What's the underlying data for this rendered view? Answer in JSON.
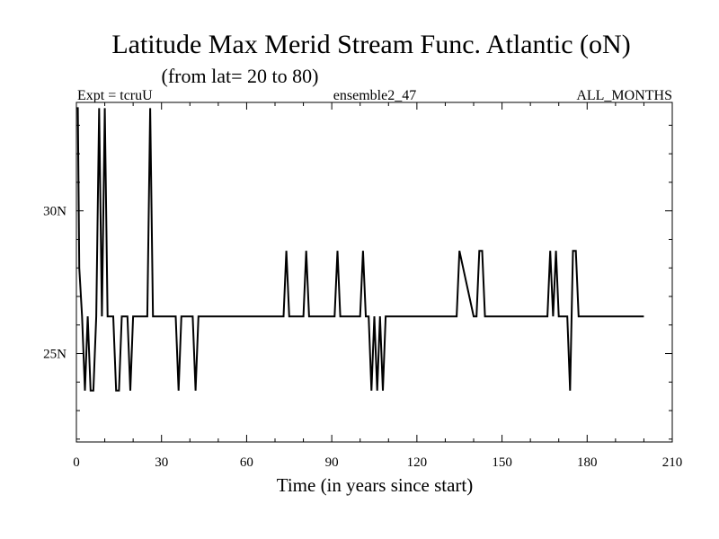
{
  "chart_data": {
    "type": "line",
    "title": "Latitude Max Merid Stream Func. Atlantic (oN)",
    "subtitle": "(from lat= 20 to 80)",
    "header_left": "Expt = tcruU",
    "header_center": "ensemble2_47",
    "header_right": "ALL_MONTHS",
    "xlabel": "Time (in years since start)",
    "ylabel": "",
    "xlim": [
      0,
      210
    ],
    "ylim": [
      21.9,
      33.8
    ],
    "grid": false,
    "x_ticks": [
      {
        "value": 0,
        "label": "0"
      },
      {
        "value": 30,
        "label": "30"
      },
      {
        "value": 60,
        "label": "60"
      },
      {
        "value": 90,
        "label": "90"
      },
      {
        "value": 120,
        "label": "120"
      },
      {
        "value": 150,
        "label": "150"
      },
      {
        "value": 180,
        "label": "180"
      },
      {
        "value": 210,
        "label": "210"
      }
    ],
    "y_ticks": [
      {
        "value": 25,
        "label": "25N"
      },
      {
        "value": 30,
        "label": "30N"
      }
    ],
    "series": [
      {
        "x": [
          0,
          0.5,
          1,
          2,
          3,
          4,
          5,
          6,
          7,
          8,
          9,
          10,
          11,
          12,
          13,
          14,
          15,
          16,
          17,
          18,
          19,
          20,
          21,
          22,
          23,
          24,
          25,
          26,
          27,
          28,
          34,
          35,
          36,
          37,
          40,
          41,
          42,
          43,
          73,
          74,
          75,
          80,
          81,
          82,
          91,
          92,
          93,
          100,
          101,
          102,
          103,
          104,
          105,
          106,
          107,
          108,
          109,
          110,
          133,
          134,
          135,
          140,
          141,
          142,
          143,
          144,
          166,
          167,
          168,
          169,
          170,
          172,
          173,
          174,
          175,
          176,
          177,
          200
        ],
        "y": [
          33.6,
          33.6,
          28.0,
          26.3,
          23.7,
          26.3,
          23.7,
          23.7,
          26.3,
          33.6,
          26.3,
          33.6,
          26.3,
          26.3,
          26.3,
          23.7,
          23.7,
          26.3,
          26.3,
          26.3,
          23.7,
          26.3,
          26.3,
          26.3,
          26.3,
          26.3,
          26.3,
          33.6,
          26.3,
          26.3,
          26.3,
          26.3,
          23.7,
          26.3,
          26.3,
          26.3,
          23.7,
          26.3,
          26.3,
          28.6,
          26.3,
          26.3,
          28.6,
          26.3,
          26.3,
          28.6,
          26.3,
          26.3,
          28.6,
          26.3,
          26.3,
          23.7,
          26.3,
          23.7,
          26.3,
          23.7,
          26.3,
          26.3,
          26.3,
          26.3,
          28.6,
          26.3,
          26.3,
          28.6,
          28.6,
          26.3,
          26.3,
          28.6,
          26.3,
          28.6,
          26.3,
          26.3,
          26.3,
          23.7,
          28.6,
          28.6,
          26.3,
          26.3
        ]
      }
    ]
  }
}
